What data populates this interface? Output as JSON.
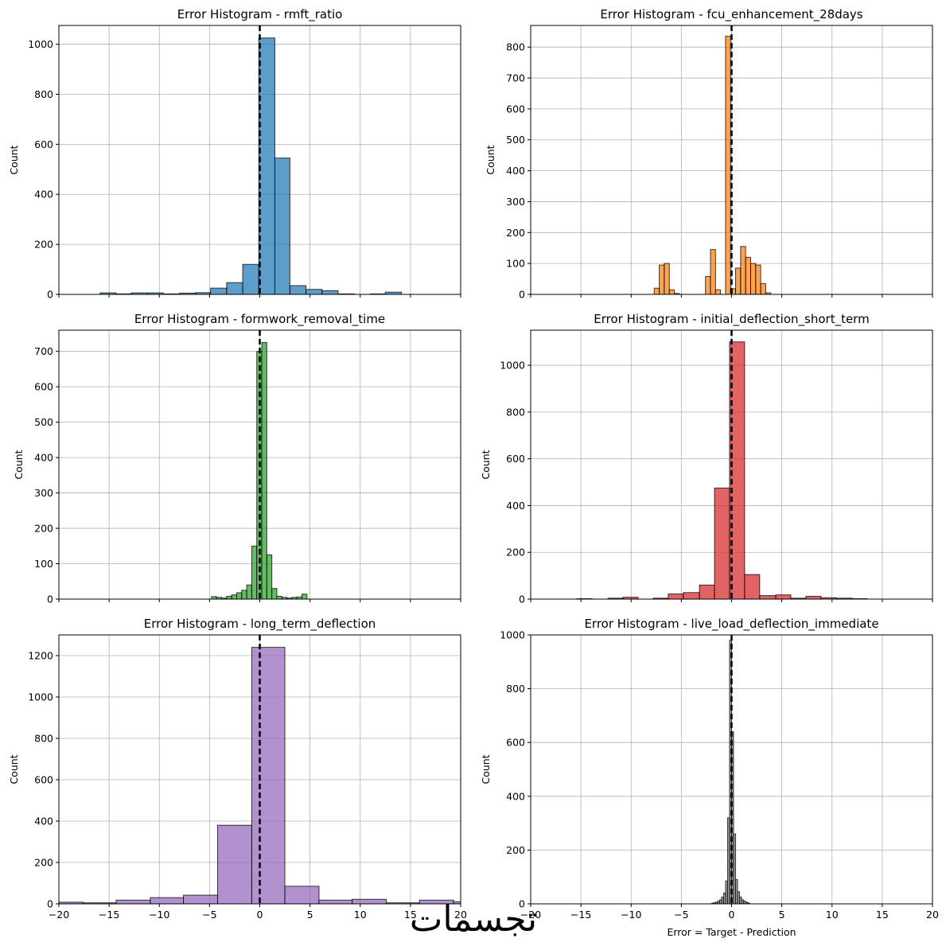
{
  "chart_data": [
    {
      "type": "bar",
      "title": "Error Histogram - rmft_ratio",
      "xlabel": "",
      "ylabel": "Count",
      "xlim": [
        -20,
        20
      ],
      "ylim": [
        0,
        1075
      ],
      "xticks": [
        -20,
        -15,
        -10,
        -5,
        0,
        5,
        10,
        15,
        20
      ],
      "show_xtick_labels": false,
      "yticks": [
        0,
        200,
        400,
        600,
        800,
        1000
      ],
      "grid": true,
      "color": "#1f77b4",
      "bins": [
        {
          "x0": -15.9,
          "x1": -14.3,
          "count": 6
        },
        {
          "x0": -14.3,
          "x1": -12.8,
          "count": 2
        },
        {
          "x0": -12.8,
          "x1": -11.2,
          "count": 6
        },
        {
          "x0": -11.2,
          "x1": -9.6,
          "count": 6
        },
        {
          "x0": -9.6,
          "x1": -8.0,
          "count": 2
        },
        {
          "x0": -8.0,
          "x1": -6.4,
          "count": 5
        },
        {
          "x0": -6.4,
          "x1": -4.9,
          "count": 7
        },
        {
          "x0": -4.9,
          "x1": -3.3,
          "count": 25
        },
        {
          "x0": -3.3,
          "x1": -1.7,
          "count": 47
        },
        {
          "x0": -1.7,
          "x1": -0.1,
          "count": 120
        },
        {
          "x0": -0.1,
          "x1": 1.5,
          "count": 1025
        },
        {
          "x0": 1.5,
          "x1": 3.0,
          "count": 545
        },
        {
          "x0": 3.0,
          "x1": 4.6,
          "count": 35
        },
        {
          "x0": 4.6,
          "x1": 6.2,
          "count": 20
        },
        {
          "x0": 6.2,
          "x1": 7.8,
          "count": 15
        },
        {
          "x0": 7.8,
          "x1": 9.4,
          "count": 2
        },
        {
          "x0": 11.0,
          "x1": 12.5,
          "count": 2
        },
        {
          "x0": 12.5,
          "x1": 14.1,
          "count": 9
        }
      ]
    },
    {
      "type": "bar",
      "title": "Error Histogram - fcu_enhancement_28days",
      "xlabel": "",
      "ylabel": "Count",
      "xlim": [
        -20,
        20
      ],
      "ylim": [
        0,
        870
      ],
      "xticks": [
        -20,
        -15,
        -10,
        -5,
        0,
        5,
        10,
        15,
        20
      ],
      "show_xtick_labels": false,
      "yticks": [
        0,
        100,
        200,
        300,
        400,
        500,
        600,
        700,
        800
      ],
      "grid": true,
      "color": "#ff7f0e",
      "bins": [
        {
          "x0": -7.7,
          "x1": -7.2,
          "count": 20
        },
        {
          "x0": -7.2,
          "x1": -6.7,
          "count": 95
        },
        {
          "x0": -6.7,
          "x1": -6.2,
          "count": 100
        },
        {
          "x0": -6.2,
          "x1": -5.7,
          "count": 15
        },
        {
          "x0": -5.7,
          "x1": -5.2,
          "count": 3
        },
        {
          "x0": -2.6,
          "x1": -2.1,
          "count": 58
        },
        {
          "x0": -2.1,
          "x1": -1.6,
          "count": 145
        },
        {
          "x0": -1.6,
          "x1": -1.1,
          "count": 15
        },
        {
          "x0": -0.6,
          "x1": -0.1,
          "count": 835
        },
        {
          "x0": -0.1,
          "x1": 0.4,
          "count": 18
        },
        {
          "x0": 0.4,
          "x1": 0.9,
          "count": 85
        },
        {
          "x0": 0.9,
          "x1": 1.4,
          "count": 155
        },
        {
          "x0": 1.4,
          "x1": 1.9,
          "count": 120
        },
        {
          "x0": 1.9,
          "x1": 2.4,
          "count": 100
        },
        {
          "x0": 2.4,
          "x1": 2.9,
          "count": 95
        },
        {
          "x0": 2.9,
          "x1": 3.4,
          "count": 35
        },
        {
          "x0": 3.4,
          "x1": 3.9,
          "count": 5
        }
      ]
    },
    {
      "type": "bar",
      "title": "Error Histogram - formwork_removal_time",
      "xlabel": "",
      "ylabel": "Count",
      "xlim": [
        -20,
        20
      ],
      "ylim": [
        0,
        760
      ],
      "xticks": [
        -20,
        -15,
        -10,
        -5,
        0,
        5,
        10,
        15,
        20
      ],
      "show_xtick_labels": false,
      "yticks": [
        0,
        100,
        200,
        300,
        400,
        500,
        600,
        700
      ],
      "grid": true,
      "color": "#2ca02c",
      "bins": [
        {
          "x0": -4.8,
          "x1": -4.3,
          "count": 7
        },
        {
          "x0": -4.3,
          "x1": -3.8,
          "count": 5
        },
        {
          "x0": -3.8,
          "x1": -3.3,
          "count": 3
        },
        {
          "x0": -3.3,
          "x1": -2.8,
          "count": 8
        },
        {
          "x0": -2.8,
          "x1": -2.3,
          "count": 12
        },
        {
          "x0": -2.3,
          "x1": -1.8,
          "count": 18
        },
        {
          "x0": -1.8,
          "x1": -1.3,
          "count": 25
        },
        {
          "x0": -1.3,
          "x1": -0.8,
          "count": 40
        },
        {
          "x0": -0.8,
          "x1": -0.3,
          "count": 150
        },
        {
          "x0": -0.3,
          "x1": 0.2,
          "count": 700
        },
        {
          "x0": 0.2,
          "x1": 0.7,
          "count": 725
        },
        {
          "x0": 0.7,
          "x1": 1.2,
          "count": 125
        },
        {
          "x0": 1.2,
          "x1": 1.7,
          "count": 30
        },
        {
          "x0": 1.7,
          "x1": 2.2,
          "count": 8
        },
        {
          "x0": 2.2,
          "x1": 2.7,
          "count": 5
        },
        {
          "x0": 2.7,
          "x1": 3.2,
          "count": 3
        },
        {
          "x0": 3.2,
          "x1": 3.7,
          "count": 5
        },
        {
          "x0": 3.7,
          "x1": 4.2,
          "count": 6
        },
        {
          "x0": 4.2,
          "x1": 4.7,
          "count": 14
        }
      ]
    },
    {
      "type": "bar",
      "title": "Error Histogram - initial_deflection_short_term",
      "xlabel": "",
      "ylabel": "Count",
      "xlim": [
        -20,
        20
      ],
      "ylim": [
        0,
        1150
      ],
      "xticks": [
        -20,
        -15,
        -10,
        -5,
        0,
        5,
        10,
        15,
        20
      ],
      "show_xtick_labels": false,
      "yticks": [
        0,
        200,
        400,
        600,
        800,
        1000
      ],
      "grid": true,
      "color": "#d62728",
      "bins": [
        {
          "x0": -15.4,
          "x1": -13.9,
          "count": 2
        },
        {
          "x0": -12.3,
          "x1": -10.8,
          "count": 4
        },
        {
          "x0": -10.8,
          "x1": -9.3,
          "count": 8
        },
        {
          "x0": -7.8,
          "x1": -6.3,
          "count": 4
        },
        {
          "x0": -6.3,
          "x1": -4.8,
          "count": 22
        },
        {
          "x0": -4.8,
          "x1": -3.2,
          "count": 28
        },
        {
          "x0": -3.2,
          "x1": -1.7,
          "count": 60
        },
        {
          "x0": -1.7,
          "x1": -0.2,
          "count": 475
        },
        {
          "x0": -0.2,
          "x1": 1.3,
          "count": 1100
        },
        {
          "x0": 1.3,
          "x1": 2.8,
          "count": 105
        },
        {
          "x0": 2.8,
          "x1": 4.4,
          "count": 15
        },
        {
          "x0": 4.4,
          "x1": 5.9,
          "count": 18
        },
        {
          "x0": 5.9,
          "x1": 7.4,
          "count": 4
        },
        {
          "x0": 7.4,
          "x1": 8.9,
          "count": 12
        },
        {
          "x0": 8.9,
          "x1": 10.4,
          "count": 6
        },
        {
          "x0": 10.4,
          "x1": 12.0,
          "count": 4
        },
        {
          "x0": 12.0,
          "x1": 13.5,
          "count": 2
        }
      ]
    },
    {
      "type": "bar",
      "title": "Error Histogram - long_term_deflection",
      "xlabel": "",
      "ylabel": "Count",
      "xlim": [
        -20,
        20
      ],
      "ylim": [
        0,
        1300
      ],
      "xticks": [
        -20,
        -15,
        -10,
        -5,
        0,
        5,
        10,
        15,
        20
      ],
      "show_xtick_labels": true,
      "yticks": [
        0,
        200,
        400,
        600,
        800,
        1000,
        1200
      ],
      "grid": true,
      "color": "#9467bd",
      "bins": [
        {
          "x0": -20.0,
          "x1": -17.6,
          "count": 8
        },
        {
          "x0": -17.6,
          "x1": -14.3,
          "count": 5
        },
        {
          "x0": -14.3,
          "x1": -10.9,
          "count": 18
        },
        {
          "x0": -10.9,
          "x1": -7.6,
          "count": 30
        },
        {
          "x0": -7.6,
          "x1": -4.2,
          "count": 42
        },
        {
          "x0": -4.2,
          "x1": -0.8,
          "count": 380
        },
        {
          "x0": -0.8,
          "x1": 2.5,
          "count": 1240
        },
        {
          "x0": 2.5,
          "x1": 5.9,
          "count": 85
        },
        {
          "x0": 5.9,
          "x1": 9.2,
          "count": 18
        },
        {
          "x0": 9.2,
          "x1": 12.6,
          "count": 22
        },
        {
          "x0": 12.6,
          "x1": 15.9,
          "count": 5
        },
        {
          "x0": 15.9,
          "x1": 19.3,
          "count": 18
        },
        {
          "x0": 19.3,
          "x1": 20.0,
          "count": 10
        }
      ]
    },
    {
      "type": "bar",
      "title": "Error Histogram - live_load_deflection_immediate",
      "xlabel": "Error = Target - Prediction",
      "ylabel": "Count",
      "xlim": [
        -20,
        20
      ],
      "ylim": [
        0,
        1000
      ],
      "xticks": [
        -20,
        -15,
        -10,
        -5,
        0,
        5,
        10,
        15,
        20
      ],
      "show_xtick_labels": true,
      "yticks": [
        0,
        200,
        400,
        600,
        800,
        1000
      ],
      "grid": true,
      "color": "#7f7f7f",
      "bins": [
        {
          "x0": -2.0,
          "x1": -1.8,
          "count": 2
        },
        {
          "x0": -1.8,
          "x1": -1.6,
          "count": 4
        },
        {
          "x0": -1.6,
          "x1": -1.4,
          "count": 6
        },
        {
          "x0": -1.4,
          "x1": -1.2,
          "count": 10
        },
        {
          "x0": -1.2,
          "x1": -1.0,
          "count": 15
        },
        {
          "x0": -1.0,
          "x1": -0.8,
          "count": 25
        },
        {
          "x0": -0.8,
          "x1": -0.6,
          "count": 40
        },
        {
          "x0": -0.6,
          "x1": -0.4,
          "count": 85
        },
        {
          "x0": -0.4,
          "x1": -0.2,
          "count": 320
        },
        {
          "x0": -0.2,
          "x1": 0.0,
          "count": 980
        },
        {
          "x0": 0.0,
          "x1": 0.2,
          "count": 640
        },
        {
          "x0": 0.2,
          "x1": 0.4,
          "count": 260
        },
        {
          "x0": 0.4,
          "x1": 0.6,
          "count": 90
        },
        {
          "x0": 0.6,
          "x1": 0.8,
          "count": 45
        },
        {
          "x0": 0.8,
          "x1": 1.0,
          "count": 25
        },
        {
          "x0": 1.0,
          "x1": 1.2,
          "count": 15
        },
        {
          "x0": 1.2,
          "x1": 1.4,
          "count": 10
        },
        {
          "x0": 1.4,
          "x1": 1.6,
          "count": 6
        },
        {
          "x0": 1.6,
          "x1": 1.8,
          "count": 3
        }
      ]
    }
  ],
  "watermark": "تجسمات"
}
